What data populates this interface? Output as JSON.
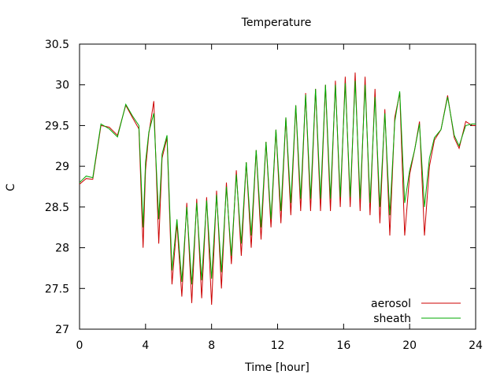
{
  "chart_data": {
    "type": "line",
    "title": "Temperature",
    "xlabel": "Time [hour]",
    "ylabel": "C",
    "xlim": [
      0,
      24
    ],
    "ylim": [
      27,
      30.5
    ],
    "xticks": [
      0,
      4,
      8,
      12,
      16,
      20,
      24
    ],
    "xtick_labels": [
      "0",
      "4",
      "8",
      "12",
      "16",
      "20",
      "24"
    ],
    "yticks": [
      27,
      27.5,
      28,
      28.5,
      29,
      29.5,
      30,
      30.5
    ],
    "ytick_labels": [
      "27",
      "27.5",
      "28",
      "28.5",
      "29",
      "29.5",
      "30",
      "30.5"
    ],
    "grid": false,
    "legend_position": "bottom-right",
    "series": [
      {
        "name": "aerosol",
        "color": "#cc0000",
        "x": [
          0,
          0.4,
          0.8,
          1.3,
          1.8,
          2.3,
          2.8,
          3.2,
          3.6,
          3.85,
          4.0,
          4.2,
          4.5,
          4.8,
          5.0,
          5.3,
          5.6,
          5.9,
          6.2,
          6.5,
          6.8,
          7.1,
          7.4,
          7.7,
          8.0,
          8.3,
          8.6,
          8.9,
          9.2,
          9.5,
          9.8,
          10.1,
          10.4,
          10.7,
          11.0,
          11.3,
          11.6,
          11.9,
          12.2,
          12.5,
          12.8,
          13.1,
          13.4,
          13.7,
          14.0,
          14.3,
          14.6,
          14.9,
          15.2,
          15.5,
          15.8,
          16.1,
          16.4,
          16.7,
          17.0,
          17.3,
          17.6,
          17.9,
          18.2,
          18.5,
          18.8,
          19.1,
          19.4,
          19.7,
          20.0,
          20.3,
          20.6,
          20.9,
          21.2,
          21.5,
          21.9,
          22.3,
          22.7,
          23.0,
          23.4,
          23.8,
          24.0
        ],
        "values": [
          28.78,
          28.85,
          28.84,
          29.5,
          29.48,
          29.38,
          29.75,
          29.6,
          29.46,
          28.0,
          28.95,
          29.4,
          29.8,
          28.05,
          29.1,
          29.35,
          27.55,
          28.3,
          27.4,
          28.55,
          27.32,
          28.6,
          27.38,
          28.62,
          27.3,
          28.7,
          27.5,
          28.8,
          27.8,
          28.95,
          27.9,
          29.05,
          28.0,
          29.2,
          28.1,
          29.3,
          28.25,
          29.45,
          28.3,
          29.6,
          28.4,
          29.75,
          28.45,
          29.9,
          28.45,
          29.95,
          28.45,
          30.0,
          28.45,
          30.05,
          28.5,
          30.1,
          28.5,
          30.15,
          28.45,
          30.1,
          28.4,
          29.95,
          28.3,
          29.7,
          28.15,
          29.6,
          29.9,
          28.15,
          28.9,
          29.2,
          29.55,
          28.15,
          29.0,
          29.32,
          29.45,
          29.87,
          29.35,
          29.22,
          29.55,
          29.5,
          29.5
        ]
      },
      {
        "name": "sheath",
        "color": "#00aa00",
        "x": [
          0,
          0.4,
          0.8,
          1.3,
          1.8,
          2.3,
          2.8,
          3.2,
          3.6,
          3.85,
          4.0,
          4.2,
          4.5,
          4.8,
          5.0,
          5.3,
          5.6,
          5.9,
          6.2,
          6.5,
          6.8,
          7.1,
          7.4,
          7.7,
          8.0,
          8.3,
          8.6,
          8.9,
          9.2,
          9.5,
          9.8,
          10.1,
          10.4,
          10.7,
          11.0,
          11.3,
          11.6,
          11.9,
          12.2,
          12.5,
          12.8,
          13.1,
          13.4,
          13.7,
          14.0,
          14.3,
          14.6,
          14.9,
          15.2,
          15.5,
          15.8,
          16.1,
          16.4,
          16.7,
          17.0,
          17.3,
          17.6,
          17.9,
          18.2,
          18.5,
          18.8,
          19.1,
          19.4,
          19.7,
          20.0,
          20.3,
          20.6,
          20.9,
          21.2,
          21.5,
          21.9,
          22.3,
          22.7,
          23.0,
          23.4,
          23.8,
          24.0
        ],
        "values": [
          28.8,
          28.88,
          28.86,
          29.52,
          29.46,
          29.36,
          29.76,
          29.62,
          29.5,
          28.25,
          29.05,
          29.42,
          29.65,
          28.35,
          29.15,
          29.38,
          27.72,
          28.35,
          27.58,
          28.5,
          27.55,
          28.55,
          27.6,
          28.58,
          27.62,
          28.65,
          27.7,
          28.75,
          27.9,
          28.9,
          28.05,
          29.05,
          28.15,
          29.2,
          28.25,
          29.3,
          28.35,
          29.45,
          28.45,
          29.6,
          28.55,
          29.75,
          28.6,
          29.88,
          28.6,
          29.95,
          28.6,
          30.0,
          28.6,
          30.0,
          28.62,
          30.02,
          28.62,
          30.05,
          28.6,
          30.0,
          28.55,
          29.85,
          28.5,
          29.65,
          28.4,
          29.55,
          29.92,
          28.55,
          28.95,
          29.2,
          29.52,
          28.5,
          29.1,
          29.35,
          29.45,
          29.85,
          29.38,
          29.25,
          29.5,
          29.52,
          29.52
        ]
      }
    ]
  }
}
